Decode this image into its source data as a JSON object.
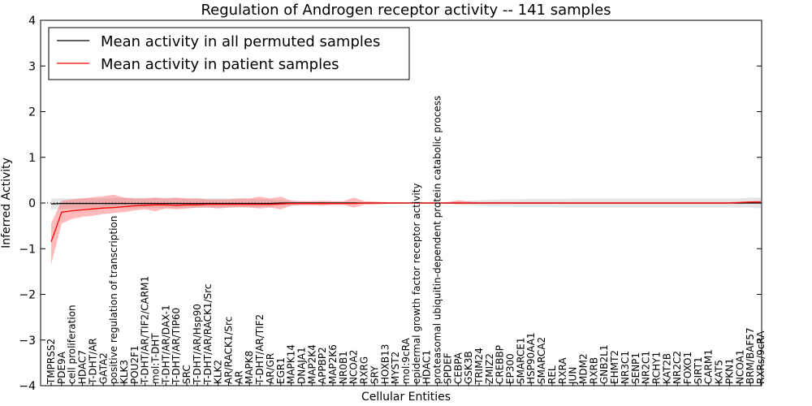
{
  "chart_data": {
    "type": "line",
    "title": "Regulation of Androgen receptor activity -- 141 samples",
    "xlabel": "Cellular Entities",
    "ylabel": "Inferred Activity",
    "ylim": [
      -4,
      4
    ],
    "yticks": [
      -4,
      -3,
      -2,
      -1,
      0,
      1,
      2,
      3,
      4
    ],
    "legend_position": "top-left",
    "categories": [
      "TMPRSS2",
      "PDE9A",
      "cell proliferation",
      "HDAC7",
      "T-DHT/AR",
      "GATA2",
      "positive regulation of transcription",
      "KLK3",
      "POU2F1",
      "T-DHT/AR/TIF2/CARM1",
      "mol:T-DHT",
      "T-DHT/AR/DAX-1",
      "T-DHT/AR/TIP60",
      "SRC",
      "T-DHT/AR/Hsp90",
      "T-DHT/AR/RACK1/Src",
      "KLK2",
      "AR/RACK1/Src",
      "AR",
      "MAPK8",
      "T-DHT/AR/TIF2",
      "AR/GR",
      "EGR1",
      "MAPK14",
      "DNAJA1",
      "MAP2K4",
      "APPBP2",
      "MAP2K6",
      "NR0B1",
      "NCOA2",
      "RXRG",
      "SRY",
      "HOXB13",
      "MYST2",
      "mol:9cRA",
      "epidermal growth factor receptor activity",
      "HDAC1",
      "proteasomal ubiquitin-dependent protein catabolic process",
      "SPDEF",
      "CEBPA",
      "GSK3B",
      "TRIM24",
      "ZMIZ2",
      "CREBBP",
      "EP300",
      "SMARCE1",
      "HSP90AA1",
      "SMARCA2",
      "REL",
      "RXRA",
      "JUN",
      "MDM2",
      "RXRB",
      "GNB2L1",
      "EHMT2",
      "NR3C1",
      "SENP1",
      "NR2C1",
      "RCHY1",
      "KAT2B",
      "NR2C2",
      "FOXO1",
      "SIRT1",
      "CARM1",
      "KAT5",
      "PKN1",
      "NCOA1",
      "BRM/BAF57",
      "RXRs/9cRA"
    ],
    "series": [
      {
        "name": "Mean activity in all permuted samples",
        "color": "#000000",
        "values": [
          -0.02,
          -0.01,
          -0.01,
          -0.01,
          -0.01,
          -0.01,
          -0.01,
          -0.01,
          -0.01,
          -0.01,
          -0.01,
          -0.01,
          -0.01,
          -0.01,
          -0.01,
          -0.01,
          -0.01,
          -0.01,
          -0.01,
          -0.01,
          -0.01,
          -0.01,
          0,
          0,
          0,
          0,
          0,
          0,
          0,
          0,
          0,
          0,
          0,
          0,
          0,
          0,
          0,
          0,
          0,
          0,
          0,
          0,
          0,
          0,
          0,
          0,
          0,
          0,
          0,
          0,
          0,
          0,
          0,
          0,
          0,
          0,
          0,
          0,
          0,
          0,
          0,
          0,
          0,
          0,
          0,
          0,
          0,
          0,
          0
        ],
        "band_lower": [
          -0.14,
          -0.13,
          -0.12,
          -0.12,
          -0.12,
          -0.12,
          -0.12,
          -0.12,
          -0.12,
          -0.11,
          -0.11,
          -0.11,
          -0.11,
          -0.11,
          -0.11,
          -0.1,
          -0.1,
          -0.1,
          -0.1,
          -0.09,
          -0.09,
          -0.08,
          -0.06,
          -0.05,
          -0.04,
          -0.04,
          -0.03,
          -0.03,
          -0.03,
          -0.02,
          -0.02,
          -0.02,
          -0.02,
          -0.02,
          -0.01,
          -0.01,
          -0.01,
          -0.01,
          -0.02,
          -0.04,
          -0.05,
          -0.06,
          -0.07,
          -0.08,
          -0.08,
          -0.09,
          -0.09,
          -0.09,
          -0.09,
          -0.1,
          -0.1,
          -0.1,
          -0.1,
          -0.1,
          -0.1,
          -0.1,
          -0.1,
          -0.1,
          -0.1,
          -0.1,
          -0.1,
          -0.1,
          -0.1,
          -0.1,
          -0.1,
          -0.1,
          -0.1,
          -0.1,
          -0.12
        ],
        "band_upper": [
          0.1,
          0.1,
          0.1,
          0.1,
          0.1,
          0.1,
          0.11,
          0.11,
          0.11,
          0.11,
          0.11,
          0.11,
          0.11,
          0.1,
          0.1,
          0.1,
          0.1,
          0.1,
          0.1,
          0.09,
          0.09,
          0.08,
          0.06,
          0.05,
          0.04,
          0.04,
          0.03,
          0.03,
          0.03,
          0.02,
          0.02,
          0.02,
          0.02,
          0.02,
          0.01,
          0.01,
          0.01,
          0.01,
          0.02,
          0.04,
          0.05,
          0.06,
          0.07,
          0.08,
          0.08,
          0.08,
          0.09,
          0.09,
          0.09,
          0.09,
          0.1,
          0.1,
          0.1,
          0.1,
          0.1,
          0.1,
          0.1,
          0.1,
          0.1,
          0.1,
          0.1,
          0.1,
          0.1,
          0.1,
          0.1,
          0.1,
          0.1,
          0.12,
          0.12
        ]
      },
      {
        "name": "Mean activity in patient samples",
        "color": "#ff0000",
        "values": [
          -0.85,
          -0.2,
          -0.17,
          -0.15,
          -0.13,
          -0.11,
          -0.1,
          -0.08,
          -0.06,
          -0.05,
          -0.04,
          -0.04,
          -0.05,
          -0.04,
          -0.04,
          -0.03,
          -0.03,
          -0.03,
          -0.03,
          -0.03,
          -0.03,
          -0.03,
          -0.02,
          -0.01,
          -0.01,
          -0.01,
          -0.01,
          -0.01,
          -0.01,
          -0.01,
          0,
          0,
          0,
          0,
          0,
          0,
          0,
          0,
          0,
          0,
          0,
          0,
          0,
          0,
          0,
          0,
          0,
          0,
          0,
          0,
          0,
          0,
          0,
          0,
          0,
          0,
          0,
          0,
          0,
          0,
          0,
          0,
          0,
          0,
          0,
          0,
          0.01,
          0.02,
          0.02
        ],
        "band_lower": [
          -1.35,
          -0.45,
          -0.35,
          -0.3,
          -0.28,
          -0.24,
          -0.22,
          -0.2,
          -0.16,
          -0.14,
          -0.18,
          -0.12,
          -0.14,
          -0.12,
          -0.1,
          -0.1,
          -0.12,
          -0.1,
          -0.09,
          -0.1,
          -0.12,
          -0.1,
          -0.14,
          -0.06,
          -0.05,
          -0.05,
          -0.06,
          -0.04,
          -0.04,
          -0.1,
          -0.04,
          -0.03,
          -0.02,
          -0.01,
          -0.01,
          -0.01,
          -0.01,
          -0.01,
          -0.01,
          -0.02,
          -0.02,
          -0.02,
          -0.02,
          -0.02,
          -0.02,
          -0.02,
          -0.02,
          -0.02,
          -0.02,
          -0.02,
          -0.02,
          -0.02,
          -0.02,
          -0.02,
          -0.02,
          -0.02,
          -0.02,
          -0.02,
          -0.02,
          -0.02,
          -0.02,
          -0.02,
          -0.02,
          -0.02,
          -0.02,
          -0.02,
          -0.02,
          -0.01,
          -0.01
        ],
        "band_upper": [
          -0.45,
          0.05,
          0.08,
          0.1,
          0.13,
          0.15,
          0.18,
          0.12,
          0.1,
          0.1,
          0.12,
          0.1,
          0.12,
          0.1,
          0.1,
          0.08,
          0.08,
          0.08,
          0.1,
          0.1,
          0.14,
          0.1,
          0.14,
          0.05,
          0.04,
          0.04,
          0.05,
          0.04,
          0.04,
          0.12,
          0.04,
          0.03,
          0.02,
          0.01,
          0.01,
          0.01,
          0.01,
          0.01,
          0.02,
          0.06,
          0.03,
          0.02,
          0.02,
          0.02,
          0.02,
          0.02,
          0.02,
          0.02,
          0.02,
          0.02,
          0.02,
          0.02,
          0.02,
          0.02,
          0.02,
          0.02,
          0.02,
          0.02,
          0.02,
          0.02,
          0.02,
          0.02,
          0.02,
          0.02,
          0.02,
          0.02,
          0.03,
          0.04,
          0.05
        ]
      }
    ]
  }
}
